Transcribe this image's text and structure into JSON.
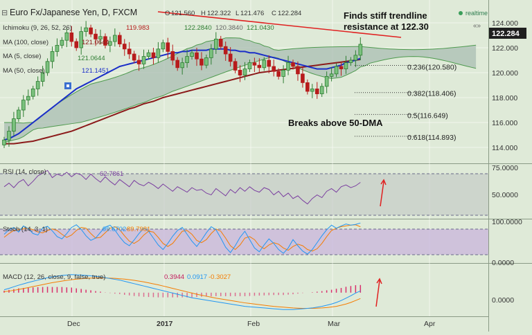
{
  "header": {
    "symbol_line": "Euro Fx/Japanese Yen, D, FXCM",
    "ohlc": {
      "o_label": "O",
      "o": "121.560",
      "h_label": "H",
      "h": "122.322",
      "l_label": "L",
      "l": "121.476",
      "c_label": "C",
      "c": "122.284"
    },
    "realtime_label": "realtime"
  },
  "indicators": {
    "ichimoku": {
      "label": "Ichimoku (9, 26, 52, 26)",
      "v1": "119.983",
      "v2": "122.2840",
      "v3": "120.3840",
      "v4": "121.0430"
    },
    "ma100": {
      "label": "MA (100, close)",
      "value": "121.0644"
    },
    "ma5": {
      "label": "MA (5, close)",
      "value": "121.0644"
    },
    "ma50": {
      "label": "MA (50, close)",
      "value": "121.1451"
    }
  },
  "annotations": {
    "trendline_note_line1": "Finds stiff trendline",
    "trendline_note_line2": "resistance at 122.30",
    "dma_note": "Breaks above 50-DMA"
  },
  "fib_levels": [
    {
      "label": "0.236(120.580)",
      "price": 120.58
    },
    {
      "label": "0.382(118.406)",
      "price": 118.406
    },
    {
      "label": "0.5(116.649)",
      "price": 116.649
    },
    {
      "label": "0.618(114.893)",
      "price": 114.893
    }
  ],
  "price_axis": {
    "ticks": [
      "124.000",
      "122.000",
      "120.000",
      "118.000",
      "116.000",
      "114.000"
    ],
    "current": "122.284"
  },
  "rsi": {
    "label": "RSI (14, close)",
    "value": "62.7861",
    "ticks": [
      "75.0000",
      "50.0000"
    ]
  },
  "stoch": {
    "label": "Stoch (14, 3, 1)",
    "k": "99.6702",
    "d": "89.7981",
    "ticks": [
      "100.0000",
      "0.0000"
    ]
  },
  "macd": {
    "label": "MACD (12, 26, close, 9, false, true)",
    "hist": "0.3944",
    "macd": "0.0917",
    "signal": "-0.3027",
    "ticks": [
      "0.0000"
    ]
  },
  "time_axis": [
    "Dec",
    "2017",
    "Feb",
    "Mar",
    "Apr"
  ],
  "colors": {
    "bull": "#2e7d32",
    "bear": "#b71c1c",
    "ma50": "#1a2ec8",
    "ma100": "#8b1a1a",
    "cloud": "#a9bdb3",
    "cloud_edge": "#4e9a4e",
    "rsi": "#7b3fa0",
    "stoch_k": "#2196f3",
    "stoch_d": "#f57c00",
    "trend": "#e02020",
    "arrow": "#e02020"
  },
  "chart_data": [
    {
      "type": "candlestick",
      "title": "Euro Fx/Japanese Yen, D, FXCM",
      "ylim": [
        113,
        125
      ],
      "x_labels": [
        "Dec",
        "2017",
        "Feb",
        "Mar",
        "Apr"
      ],
      "close": [
        114.6,
        115.3,
        116.3,
        117.0,
        117.8,
        118.1,
        118.7,
        119.3,
        120.0,
        120.9,
        121.7,
        122.2,
        122.6,
        123.2,
        122.5,
        122.0,
        123.3,
        123.6,
        123.1,
        122.7,
        122.9,
        122.2,
        122.5,
        123.0,
        122.3,
        121.9,
        121.5,
        121.0,
        120.7,
        121.3,
        121.6,
        121.2,
        121.9,
        122.4,
        121.7,
        121.0,
        120.4,
        120.8,
        121.3,
        121.6,
        121.1,
        120.6,
        121.2,
        121.9,
        122.7,
        122.1,
        121.5,
        120.9,
        120.2,
        119.8,
        120.3,
        120.8,
        120.6,
        120.4,
        121.0,
        120.5,
        120.1,
        119.7,
        120.2,
        120.8,
        120.5,
        119.9,
        119.2,
        118.5,
        118.7,
        118.3,
        118.9,
        119.7,
        119.9,
        120.5,
        120.3,
        120.8,
        121.0,
        121.4,
        122.28
      ],
      "ma50": [
        114.6,
        114.7,
        114.9,
        115.1,
        115.4,
        115.7,
        116.0,
        116.3,
        116.6,
        116.9,
        117.2,
        117.5,
        117.8,
        118.1,
        118.4,
        118.7,
        118.9,
        119.1,
        119.3,
        119.5,
        119.7,
        119.9,
        120.1,
        120.3,
        120.5,
        120.6,
        120.7,
        120.8,
        120.9,
        121.0,
        121.1,
        121.2,
        121.3,
        121.4,
        121.5,
        121.6,
        121.6,
        121.7,
        121.7,
        121.8,
        121.8,
        121.8,
        121.8,
        121.9,
        121.9,
        121.9,
        121.9,
        121.8,
        121.8,
        121.7,
        121.7,
        121.6,
        121.6,
        121.5,
        121.4,
        121.3,
        121.2,
        121.1,
        121.0,
        120.9,
        120.8,
        120.7,
        120.6,
        120.5,
        120.4,
        120.3,
        120.3,
        120.3,
        120.4,
        120.5,
        120.6,
        120.8,
        120.9,
        121.0,
        121.15
      ],
      "ma100": [
        114.3,
        114.3,
        114.3,
        114.35,
        114.4,
        114.45,
        114.5,
        114.6,
        114.7,
        114.8,
        114.9,
        115.0,
        115.1,
        115.2,
        115.3,
        115.45,
        115.6,
        115.75,
        115.9,
        116.05,
        116.2,
        116.35,
        116.5,
        116.65,
        116.8,
        116.95,
        117.1,
        117.2,
        117.35,
        117.5,
        117.6,
        117.7,
        117.85,
        118.0,
        118.1,
        118.2,
        118.3,
        118.4,
        118.5,
        118.6,
        118.7,
        118.8,
        118.9,
        119.0,
        119.1,
        119.2,
        119.3,
        119.4,
        119.5,
        119.6,
        119.7,
        119.8,
        119.9,
        120.0,
        120.05,
        120.1,
        120.15,
        120.2,
        120.25,
        120.3,
        120.35,
        120.4,
        120.45,
        120.5,
        120.55,
        120.6,
        120.65,
        120.7,
        120.75,
        120.8,
        120.85,
        120.9,
        120.95,
        121.0,
        121.06
      ],
      "fib_levels": [
        120.58,
        118.406,
        116.649,
        114.893
      ]
    },
    {
      "type": "line",
      "name": "RSI (14, close)",
      "ylim": [
        25,
        80
      ],
      "last": 62.7861,
      "values": [
        58,
        62,
        57,
        63,
        66,
        59,
        64,
        70,
        73,
        76,
        68,
        72,
        70,
        74,
        69,
        73,
        71,
        66,
        72,
        67,
        63,
        69,
        64,
        60,
        66,
        62,
        58,
        65,
        61,
        59,
        63,
        60,
        56,
        61,
        57,
        53,
        58,
        55,
        52,
        57,
        54,
        55,
        51,
        49,
        56,
        52,
        48,
        55,
        51,
        57,
        53,
        58,
        54,
        52,
        57,
        55,
        49,
        53,
        47,
        51,
        45,
        48,
        43,
        39,
        45,
        49,
        46,
        53,
        56,
        52,
        58,
        60,
        57,
        59,
        62.79
      ]
    },
    {
      "type": "line",
      "name": "Stoch (14, 3, 1)",
      "ylim": [
        0,
        100
      ],
      "k": [
        70,
        82,
        88,
        76,
        92,
        85,
        72,
        68,
        86,
        91,
        79,
        64,
        58,
        72,
        88,
        95,
        83,
        66,
        54,
        60,
        75,
        89,
        94,
        81,
        63,
        48,
        40,
        55,
        72,
        86,
        78,
        60,
        42,
        30,
        46,
        65,
        80,
        88,
        70,
        52,
        38,
        55,
        74,
        90,
        82,
        60,
        36,
        22,
        40,
        62,
        78,
        56,
        34,
        24,
        42,
        58,
        46,
        30,
        20,
        34,
        56,
        40,
        26,
        18,
        30,
        48,
        66,
        82,
        94,
        86,
        92,
        97,
        94,
        96,
        99.67
      ],
      "d": [
        62,
        72,
        80,
        82,
        84,
        86,
        82,
        76,
        74,
        80,
        84,
        80,
        70,
        62,
        68,
        80,
        88,
        86,
        72,
        60,
        62,
        74,
        86,
        90,
        82,
        66,
        52,
        46,
        54,
        68,
        78,
        76,
        62,
        46,
        38,
        46,
        62,
        78,
        80,
        70,
        54,
        48,
        56,
        72,
        84,
        78,
        60,
        40,
        30,
        42,
        60,
        64,
        56,
        40,
        32,
        42,
        48,
        44,
        34,
        28,
        38,
        44,
        40,
        30,
        26,
        32,
        46,
        64,
        80,
        86,
        90,
        92,
        94,
        95,
        89.8
      ]
    },
    {
      "type": "line",
      "name": "MACD (12, 26, close, 9, false, true)",
      "ylim": [
        -1.1,
        1.3
      ],
      "macd": [
        0.15,
        0.22,
        0.3,
        0.38,
        0.45,
        0.52,
        0.58,
        0.64,
        0.7,
        0.76,
        0.8,
        0.84,
        0.88,
        0.9,
        0.92,
        0.91,
        0.9,
        0.88,
        0.86,
        0.83,
        0.8,
        0.76,
        0.72,
        0.68,
        0.64,
        0.58,
        0.52,
        0.46,
        0.4,
        0.34,
        0.28,
        0.22,
        0.16,
        0.1,
        0.04,
        -0.02,
        -0.08,
        -0.14,
        -0.2,
        -0.26,
        -0.3,
        -0.34,
        -0.38,
        -0.42,
        -0.46,
        -0.5,
        -0.54,
        -0.58,
        -0.62,
        -0.66,
        -0.7,
        -0.72,
        -0.74,
        -0.76,
        -0.78,
        -0.8,
        -0.82,
        -0.84,
        -0.86,
        -0.86,
        -0.86,
        -0.84,
        -0.82,
        -0.8,
        -0.78,
        -0.74,
        -0.7,
        -0.64,
        -0.58,
        -0.5,
        -0.4,
        -0.28,
        -0.16,
        -0.02,
        0.09
      ],
      "signal": [
        0.05,
        0.08,
        0.12,
        0.16,
        0.21,
        0.26,
        0.31,
        0.36,
        0.41,
        0.46,
        0.51,
        0.55,
        0.59,
        0.63,
        0.66,
        0.69,
        0.71,
        0.73,
        0.74,
        0.75,
        0.75,
        0.75,
        0.74,
        0.73,
        0.71,
        0.69,
        0.66,
        0.63,
        0.59,
        0.55,
        0.5,
        0.45,
        0.4,
        0.34,
        0.28,
        0.22,
        0.16,
        0.1,
        0.04,
        -0.02,
        -0.08,
        -0.13,
        -0.18,
        -0.23,
        -0.28,
        -0.32,
        -0.36,
        -0.4,
        -0.44,
        -0.48,
        -0.52,
        -0.55,
        -0.58,
        -0.61,
        -0.64,
        -0.67,
        -0.7,
        -0.72,
        -0.74,
        -0.76,
        -0.78,
        -0.79,
        -0.8,
        -0.8,
        -0.8,
        -0.79,
        -0.78,
        -0.76,
        -0.73,
        -0.7,
        -0.64,
        -0.58,
        -0.5,
        -0.4,
        -0.3
      ],
      "hist_last": 0.3944
    }
  ]
}
